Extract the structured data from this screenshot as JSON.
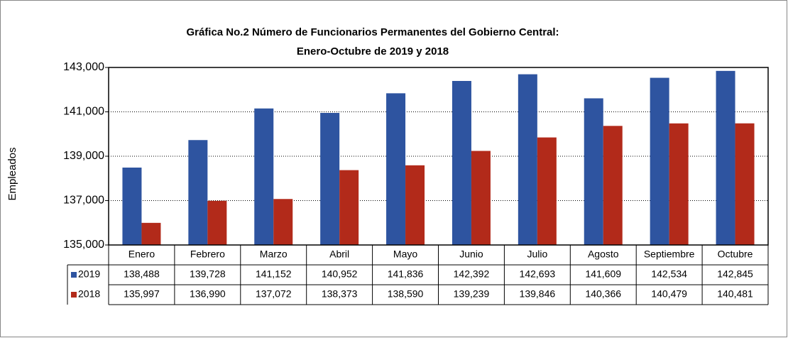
{
  "chart_data": {
    "type": "bar",
    "title": "Gráfica No.2 Número de Funcionarios Permanentes del Gobierno Central:",
    "subtitle": "Enero-Octubre de 2019 y 2018",
    "y_label": "Empleados",
    "categories": [
      "Enero",
      "Febrero",
      "Marzo",
      "Abril",
      "Mayo",
      "Junio",
      "Julio",
      "Agosto",
      "Septiembre",
      "Octubre"
    ],
    "series": [
      {
        "name": "2019",
        "color": "#2e54a0",
        "values": [
          138488,
          139728,
          141152,
          140952,
          141836,
          142392,
          142693,
          141609,
          142534,
          142845
        ],
        "value_labels": [
          "138,488",
          "139,728",
          "141,152",
          "140,952",
          "141,836",
          "142,392",
          "142,693",
          "141,609",
          "142,534",
          "142,845"
        ]
      },
      {
        "name": "2018",
        "color": "#b22a1a",
        "values": [
          135997,
          136990,
          137072,
          138373,
          138590,
          139239,
          139846,
          140366,
          140479,
          140481
        ],
        "value_labels": [
          "135,997",
          "136,990",
          "137,072",
          "138,373",
          "138,590",
          "139,239",
          "139,846",
          "140,366",
          "140,479",
          "140,481"
        ]
      }
    ],
    "ylim": [
      135000,
      143000
    ],
    "yticks": [
      {
        "value": 135000,
        "label": "135,000"
      },
      {
        "value": 137000,
        "label": "137,000"
      },
      {
        "value": 139000,
        "label": "139,000"
      },
      {
        "value": 141000,
        "label": "141,000"
      },
      {
        "value": 143000,
        "label": "143,000"
      }
    ],
    "grid": true
  }
}
